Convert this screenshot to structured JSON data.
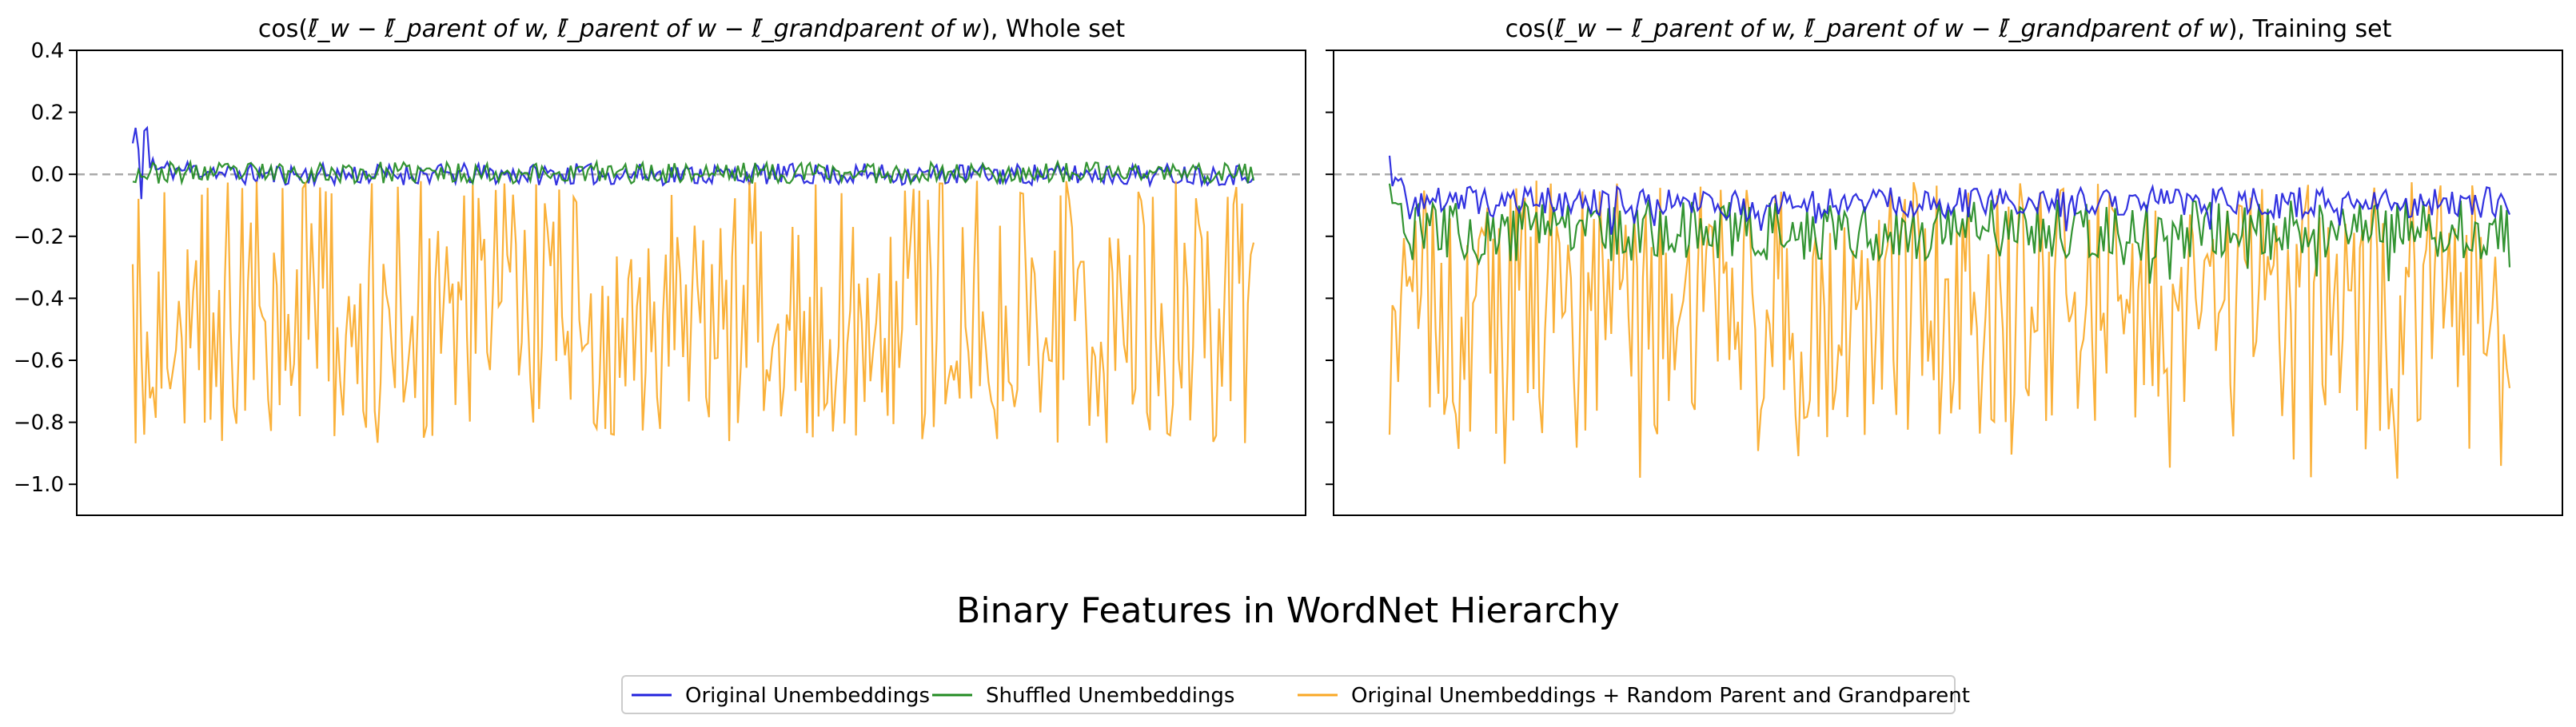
{
  "figure_title": "Binary Features in WordNet Hierarchy",
  "chart_data": [
    {
      "type": "line",
      "title": {
        "prefix": "cos(",
        "formula": "ℓ̄_w − ℓ̄_parent of w, ℓ̄_parent of w − ℓ̄_grandparent of w",
        "suffix": "), Whole set"
      },
      "xlabel": "",
      "ylabel": "",
      "ylim": [
        -1.1,
        0.4
      ],
      "yticks": [
        0.4,
        0.2,
        0.0,
        -0.2,
        -0.4,
        -0.6,
        -0.8,
        -1.0
      ],
      "ytick_labels": [
        "0.4",
        "0.2",
        "0.0",
        "−0.2",
        "−0.4",
        "−0.6",
        "−0.8",
        "−1.0"
      ],
      "x_ticks_shown": false,
      "reference_line": {
        "y": 0.0,
        "style": "dashed",
        "color": "#aaaaaa"
      },
      "grid": false,
      "n_points": 390,
      "series": [
        {
          "name": "Original Unembeddings",
          "color": "#2222dd",
          "summary": {
            "start": [
              0.1,
              0.15,
              0.08,
              -0.08,
              0.14,
              0.15,
              0.02,
              0.05
            ],
            "typical_min": -0.04,
            "typical_max": 0.04,
            "end": -0.01
          }
        },
        {
          "name": "Shuffled Unembeddings",
          "color": "#228b22",
          "summary": {
            "typical_min": -0.03,
            "typical_max": 0.05,
            "end": -0.02
          }
        },
        {
          "name": "Original Unembeddings + Random Parent and Grandparent",
          "color": "#f9a825",
          "summary": {
            "start": -0.29,
            "min": -0.9,
            "max": 0.0,
            "end": -0.22
          }
        }
      ]
    },
    {
      "type": "line",
      "title": {
        "prefix": "cos(",
        "formula": "ℓ̄_w − ℓ̄_parent of w, ℓ̄_parent of w − ℓ̄_grandparent of w",
        "suffix": "), Training set"
      },
      "xlabel": "",
      "ylabel": "",
      "ylim": [
        -1.1,
        0.4
      ],
      "yticks_shared": true,
      "x_ticks_shown": false,
      "reference_line": {
        "y": 0.0,
        "style": "dashed",
        "color": "#aaaaaa"
      },
      "grid": false,
      "n_points": 390,
      "series": [
        {
          "name": "Original Unembeddings",
          "color": "#2222dd",
          "summary": {
            "start": 0.06,
            "typical_min": -0.2,
            "typical_max": 0.0,
            "end": -0.13
          }
        },
        {
          "name": "Shuffled Unembeddings",
          "color": "#228b22",
          "summary": {
            "start": -0.03,
            "typical_min": -0.38,
            "typical_max": -0.03,
            "end": -0.3
          }
        },
        {
          "name": "Original Unembeddings + Random Parent and Grandparent",
          "color": "#f9a825",
          "summary": {
            "start": -0.84,
            "min": -1.0,
            "max": 0.02,
            "end": -0.69
          }
        }
      ]
    }
  ],
  "legend": {
    "placement": "bottom-center",
    "items": [
      {
        "label": "Original Unembeddings",
        "color": "#2222dd"
      },
      {
        "label": "Shuffled Unembeddings",
        "color": "#228b22"
      },
      {
        "label": "Original Unembeddings + Random Parent and Grandparent",
        "color": "#f9a825"
      }
    ]
  }
}
